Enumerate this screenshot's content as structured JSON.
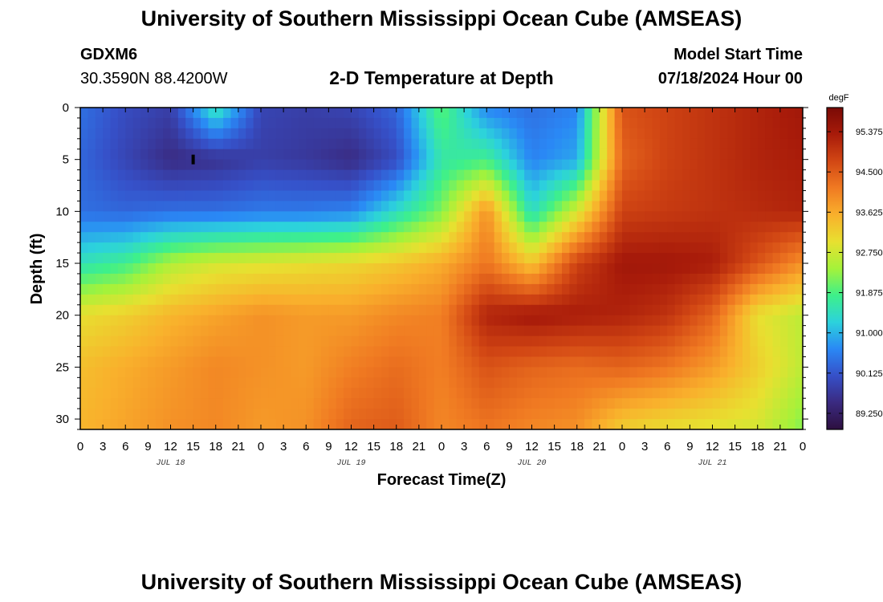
{
  "header": {
    "title": "University of Southern Mississippi Ocean Cube (AMSEAS)",
    "station_id": "GDXM6",
    "coordinates": "30.3590N  88.4200W",
    "model_start_label": "Model Start Time",
    "model_start_value": "07/18/2024 Hour 00"
  },
  "footer": {
    "title": "University of Southern Mississippi Ocean Cube (AMSEAS)"
  },
  "chart_data": {
    "type": "heatmap",
    "title": "2-D Temperature at Depth",
    "xlabel": "Forecast Time(Z)",
    "ylabel": "Depth (ft)",
    "x_ticks": [
      "0",
      "3",
      "6",
      "9",
      "12",
      "15",
      "18",
      "21",
      "0",
      "3",
      "6",
      "9",
      "12",
      "15",
      "18",
      "21",
      "0",
      "3",
      "6",
      "9",
      "12",
      "15",
      "18",
      "21",
      "0",
      "3",
      "6",
      "9",
      "12",
      "15",
      "18",
      "21",
      "0"
    ],
    "x_range_hours": [
      0,
      96
    ],
    "day_labels": [
      {
        "label": "JUL 18",
        "hour": 12
      },
      {
        "label": "JUL 19",
        "hour": 36
      },
      {
        "label": "JUL 20",
        "hour": 60
      },
      {
        "label": "JUL 21",
        "hour": 84
      }
    ],
    "y_ticks": [
      "0",
      "5",
      "10",
      "15",
      "20",
      "25",
      "30"
    ],
    "y_range_ft": [
      0,
      31
    ],
    "colorbar": {
      "unit": "degF",
      "range": [
        88.9,
        95.9
      ],
      "labels": [
        "95.375",
        "94.500",
        "93.625",
        "92.750",
        "91.875",
        "91.000",
        "90.125",
        "89.250"
      ],
      "stops": [
        "#2d0f3f",
        "#3a2a80",
        "#3650c8",
        "#2a88f5",
        "#2cd2dc",
        "#3ef08a",
        "#a5f23a",
        "#e8e030",
        "#f9b02c",
        "#f07a22",
        "#d24714",
        "#a81b0a",
        "#7a0a05"
      ]
    },
    "temperature_grid": {
      "depths_ft": [
        0,
        5,
        10,
        15,
        20,
        25,
        31
      ],
      "hours": [
        0,
        6,
        12,
        18,
        24,
        30,
        36,
        42,
        48,
        54,
        60,
        66,
        72,
        78,
        84,
        90,
        96
      ],
      "values_degF": [
        [
          90.4,
          90.0,
          89.8,
          91.6,
          89.9,
          89.8,
          89.9,
          90.3,
          92.0,
          90.6,
          90.4,
          90.6,
          94.6,
          94.8,
          95.0,
          95.2,
          95.4
        ],
        [
          90.3,
          89.9,
          89.5,
          89.6,
          89.8,
          89.7,
          89.5,
          90.0,
          91.6,
          91.8,
          90.6,
          90.9,
          94.4,
          94.8,
          95.0,
          95.2,
          95.3
        ],
        [
          90.4,
          90.3,
          90.4,
          90.4,
          90.5,
          90.5,
          90.6,
          91.4,
          92.2,
          93.9,
          91.4,
          92.8,
          94.8,
          94.9,
          95.0,
          95.1,
          95.2
        ],
        [
          91.5,
          91.8,
          92.5,
          92.8,
          92.9,
          93.0,
          93.1,
          93.3,
          93.6,
          94.2,
          93.3,
          94.8,
          95.4,
          95.4,
          95.3,
          94.6,
          93.9
        ],
        [
          93.0,
          93.2,
          93.5,
          93.7,
          93.9,
          93.8,
          93.8,
          94.0,
          94.1,
          95.2,
          95.4,
          95.3,
          95.2,
          95.0,
          94.4,
          93.0,
          92.6
        ],
        [
          93.4,
          93.6,
          93.8,
          94.0,
          93.9,
          93.8,
          94.1,
          94.3,
          94.1,
          94.6,
          94.4,
          94.3,
          94.4,
          94.2,
          93.8,
          93.2,
          92.6
        ],
        [
          93.5,
          93.7,
          93.9,
          94.0,
          93.8,
          93.9,
          94.4,
          94.5,
          94.0,
          94.2,
          94.0,
          93.9,
          93.2,
          93.0,
          92.9,
          92.8,
          92.2
        ]
      ]
    },
    "marker": {
      "hour": 15,
      "depth_ft": 5
    }
  }
}
